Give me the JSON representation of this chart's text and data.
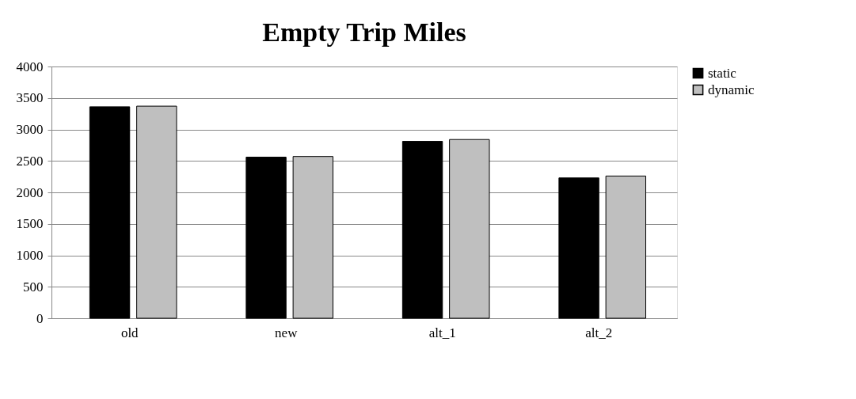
{
  "chart_data": {
    "type": "bar",
    "title": "Empty Trip Miles",
    "categories": [
      "old",
      "new",
      "alt_1",
      "alt_2"
    ],
    "series": [
      {
        "name": "static",
        "color": "#000000",
        "values": [
          3360,
          2560,
          2810,
          2230
        ]
      },
      {
        "name": "dynamic",
        "color": "#bfbfbf",
        "values": [
          3370,
          2570,
          2840,
          2260
        ]
      }
    ],
    "ylim": [
      0,
      4000
    ],
    "yticks": [
      0,
      500,
      1000,
      1500,
      2000,
      2500,
      3000,
      3500,
      4000
    ],
    "grid": "y",
    "legend": "right"
  }
}
